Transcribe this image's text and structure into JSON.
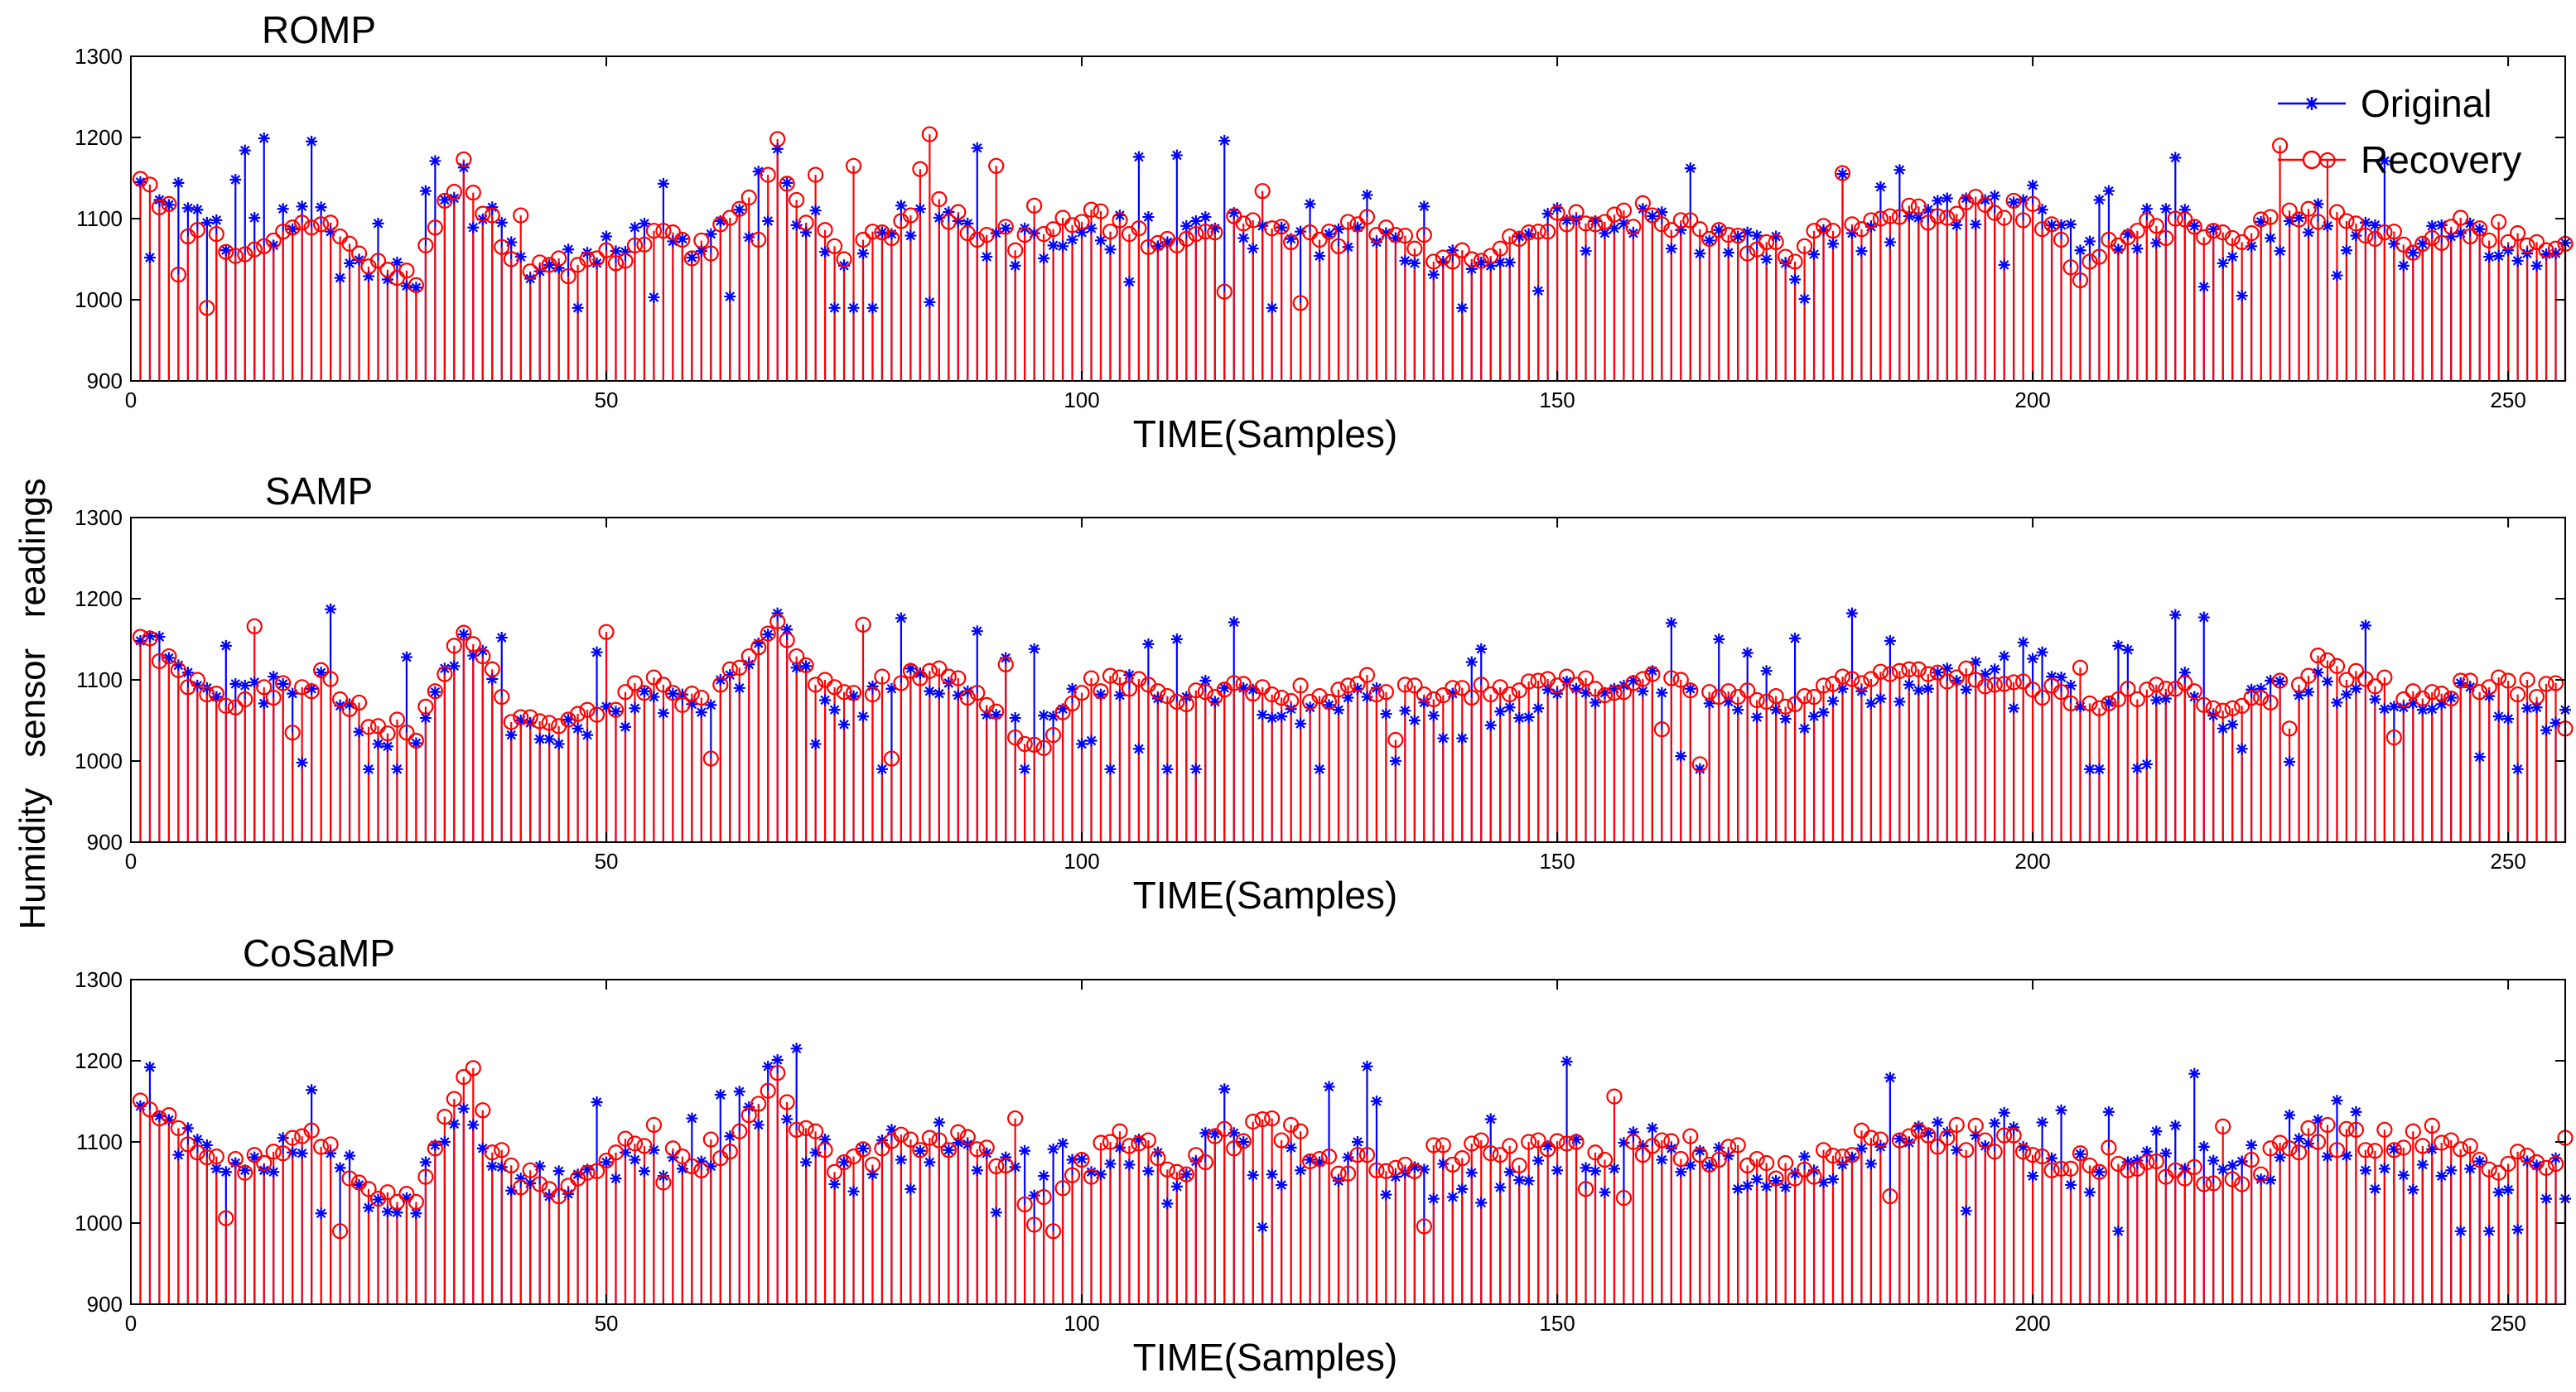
{
  "figure": {
    "ylabel": "Humidity   sensor   readings",
    "legend": [
      {
        "label": "Original",
        "color": "#0000ff",
        "marker": "star"
      },
      {
        "label": "Recovery",
        "color": "#ff0000",
        "marker": "circle"
      }
    ]
  },
  "chart_data": [
    {
      "type": "stem",
      "title": "ROMP",
      "xlabel": "TIME(Samples)",
      "ylabel": "Humidity sensor readings",
      "xlim": [
        0,
        256
      ],
      "ylim": [
        900,
        1300
      ],
      "xticks": [
        0,
        50,
        100,
        150,
        200,
        250
      ],
      "yticks": [
        900,
        1000,
        1100,
        1200,
        1300
      ],
      "legend_position": "top-right",
      "seed": 11,
      "jitter": 25,
      "outlier_prob": 0.17,
      "series": [
        {
          "name": "Original",
          "x_range": [
            1,
            256
          ],
          "profile_x": [
            0,
            5,
            10,
            15,
            20,
            25,
            30,
            35,
            40,
            45,
            50,
            55,
            60,
            65,
            68,
            70,
            75,
            80,
            85,
            90,
            95,
            100,
            105,
            110,
            115,
            120,
            125,
            130,
            135,
            140,
            145,
            150,
            155,
            160,
            165,
            170,
            175,
            180,
            185,
            190,
            195,
            200,
            205,
            210,
            215,
            220,
            225,
            230,
            235,
            240,
            245,
            250,
            256
          ],
          "profile_y": [
            1165,
            1130,
            1080,
            1090,
            1110,
            1040,
            1030,
            1160,
            1050,
            1040,
            1050,
            1080,
            1060,
            1120,
            1200,
            1110,
            1060,
            1090,
            1100,
            1075,
            1060,
            1080,
            1090,
            1060,
            1100,
            1070,
            1060,
            1080,
            1060,
            1040,
            1060,
            1090,
            1080,
            1100,
            1070,
            1060,
            1050,
            1080,
            1090,
            1100,
            1110,
            1130,
            1060,
            1080,
            1100,
            1060,
            1080,
            1100,
            1070,
            1060,
            1080,
            1060,
            1055
          ]
        },
        {
          "name": "Recovery",
          "x_range": [
            1,
            256
          ],
          "profile_x": [
            0,
            5,
            10,
            15,
            20,
            25,
            30,
            35,
            40,
            45,
            50,
            55,
            60,
            65,
            68,
            70,
            75,
            80,
            85,
            90,
            95,
            100,
            105,
            110,
            115,
            120,
            125,
            130,
            135,
            140,
            145,
            150,
            155,
            160,
            165,
            170,
            175,
            180,
            185,
            190,
            195,
            200,
            205,
            210,
            215,
            220,
            225,
            230,
            235,
            240,
            245,
            250,
            256
          ],
          "profile_y": [
            1170,
            1100,
            1060,
            1080,
            1100,
            1040,
            1030,
            1165,
            1050,
            1040,
            1050,
            1080,
            1060,
            1120,
            1185,
            1110,
            1060,
            1090,
            1110,
            1080,
            1070,
            1100,
            1090,
            1060,
            1100,
            1080,
            1070,
            1090,
            1070,
            1050,
            1070,
            1100,
            1090,
            1110,
            1080,
            1070,
            1060,
            1090,
            1100,
            1110,
            1120,
            1110,
            1030,
            1080,
            1090,
            1070,
            1090,
            1110,
            1080,
            1070,
            1090,
            1080,
            1060
          ]
        }
      ]
    },
    {
      "type": "stem",
      "title": "SAMP",
      "xlabel": "TIME(Samples)",
      "ylabel": "Humidity sensor readings",
      "xlim": [
        0,
        256
      ],
      "ylim": [
        900,
        1300
      ],
      "xticks": [
        0,
        50,
        100,
        150,
        200,
        250
      ],
      "yticks": [
        900,
        1000,
        1100,
        1200,
        1300
      ],
      "seed": 23,
      "jitter": 20,
      "outlier_prob": 0.15,
      "series": [
        {
          "name": "Original",
          "x_range": [
            1,
            256
          ],
          "profile_x": [
            0,
            5,
            10,
            15,
            20,
            25,
            30,
            35,
            40,
            45,
            50,
            55,
            60,
            65,
            68,
            70,
            75,
            80,
            85,
            90,
            95,
            100,
            105,
            110,
            115,
            120,
            125,
            130,
            135,
            140,
            145,
            150,
            155,
            160,
            165,
            170,
            175,
            180,
            185,
            190,
            195,
            200,
            205,
            210,
            215,
            220,
            225,
            230,
            235,
            240,
            245,
            250,
            256
          ],
          "profile_y": [
            1165,
            1130,
            1080,
            1090,
            1110,
            1040,
            1030,
            1160,
            1050,
            1040,
            1050,
            1080,
            1060,
            1120,
            1200,
            1110,
            1060,
            1090,
            1100,
            1075,
            1060,
            1080,
            1090,
            1060,
            1100,
            1070,
            1060,
            1080,
            1060,
            1040,
            1060,
            1090,
            1080,
            1100,
            1070,
            1060,
            1050,
            1080,
            1090,
            1100,
            1110,
            1130,
            1060,
            1080,
            1100,
            1060,
            1080,
            1100,
            1070,
            1060,
            1080,
            1060,
            1055
          ]
        },
        {
          "name": "Recovery",
          "x_range": [
            1,
            256
          ],
          "profile_x": [
            0,
            5,
            10,
            15,
            20,
            25,
            30,
            35,
            40,
            45,
            50,
            55,
            60,
            65,
            68,
            70,
            75,
            80,
            85,
            90,
            95,
            100,
            105,
            110,
            115,
            120,
            125,
            130,
            135,
            140,
            145,
            150,
            155,
            160,
            165,
            170,
            175,
            180,
            185,
            190,
            195,
            200,
            205,
            210,
            215,
            220,
            225,
            230,
            235,
            240,
            245,
            250,
            256
          ],
          "profile_y": [
            1170,
            1110,
            1070,
            1085,
            1100,
            1050,
            1035,
            1170,
            1060,
            1045,
            1070,
            1095,
            1070,
            1125,
            1175,
            1120,
            1080,
            1100,
            1105,
            1080,
            1010,
            1090,
            1100,
            1075,
            1090,
            1085,
            1080,
            1095,
            1090,
            1080,
            1090,
            1095,
            1090,
            1100,
            1085,
            1080,
            1075,
            1095,
            1100,
            1105,
            1100,
            1095,
            1060,
            1085,
            1090,
            1060,
            1080,
            1120,
            1100,
            1080,
            1090,
            1095,
            1085
          ]
        }
      ]
    },
    {
      "type": "stem",
      "title": "CoSaMP",
      "xlabel": "TIME(Samples)",
      "ylabel": "Humidity sensor readings",
      "xlim": [
        0,
        256
      ],
      "ylim": [
        900,
        1300
      ],
      "xticks": [
        0,
        50,
        100,
        150,
        200,
        250
      ],
      "yticks": [
        900,
        1000,
        1100,
        1200,
        1300
      ],
      "seed": 37,
      "jitter": 28,
      "outlier_prob": 0.14,
      "series": [
        {
          "name": "Original",
          "x_range": [
            1,
            256
          ],
          "profile_x": [
            0,
            5,
            10,
            15,
            20,
            25,
            30,
            35,
            40,
            45,
            50,
            55,
            60,
            65,
            68,
            70,
            75,
            80,
            85,
            90,
            95,
            100,
            105,
            110,
            115,
            120,
            125,
            130,
            135,
            140,
            145,
            150,
            155,
            160,
            165,
            170,
            175,
            180,
            185,
            190,
            195,
            200,
            205,
            210,
            215,
            220,
            225,
            230,
            235,
            240,
            245,
            250,
            256
          ],
          "profile_y": [
            1165,
            1130,
            1080,
            1090,
            1110,
            1040,
            1030,
            1160,
            1050,
            1040,
            1050,
            1080,
            1060,
            1120,
            1200,
            1110,
            1060,
            1090,
            1100,
            1075,
            1060,
            1080,
            1090,
            1060,
            1100,
            1070,
            1060,
            1080,
            1060,
            1040,
            1060,
            1090,
            1080,
            1100,
            1070,
            1060,
            1050,
            1080,
            1090,
            1100,
            1110,
            1130,
            1060,
            1080,
            1100,
            1060,
            1080,
            1100,
            1070,
            1060,
            1080,
            1060,
            1055
          ]
        },
        {
          "name": "Recovery",
          "x_range": [
            1,
            256
          ],
          "profile_x": [
            0,
            5,
            10,
            15,
            20,
            25,
            30,
            35,
            40,
            45,
            50,
            55,
            60,
            65,
            68,
            70,
            75,
            80,
            85,
            90,
            95,
            100,
            105,
            110,
            115,
            120,
            125,
            130,
            135,
            140,
            145,
            150,
            155,
            160,
            165,
            170,
            175,
            180,
            185,
            190,
            195,
            200,
            205,
            210,
            215,
            220,
            225,
            230,
            235,
            240,
            245,
            250,
            256
          ],
          "profile_y": [
            1170,
            1110,
            1060,
            1090,
            1100,
            1030,
            1040,
            1165,
            1060,
            1040,
            1080,
            1110,
            1080,
            1120,
            1190,
            1120,
            1070,
            1090,
            1100,
            1090,
            1010,
            1090,
            1100,
            1070,
            1100,
            1120,
            1080,
            1070,
            1080,
            1090,
            1080,
            1090,
            1080,
            1100,
            1090,
            1080,
            1060,
            1090,
            1110,
            1100,
            1110,
            1080,
            1080,
            1080,
            1070,
            1040,
            1080,
            1110,
            1100,
            1110,
            1100,
            1070,
            1090
          ]
        }
      ]
    }
  ]
}
